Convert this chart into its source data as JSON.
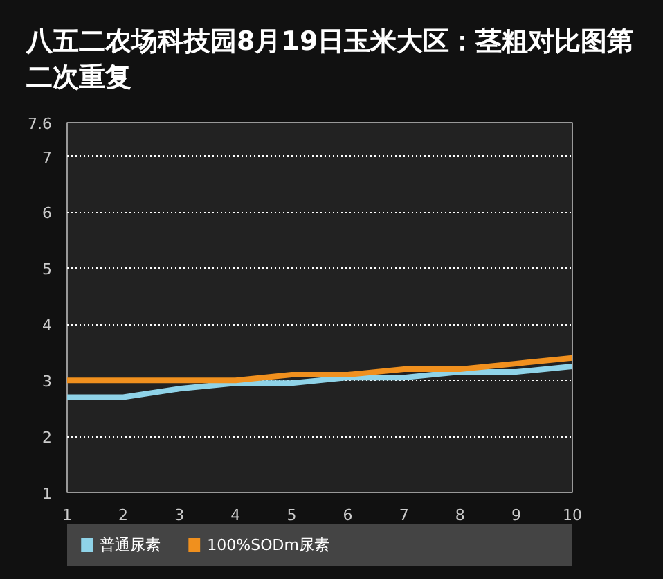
{
  "chart_data": {
    "type": "line",
    "title": "八五二农场科技园8月19日玉米大区：茎粗对比图第二次重复",
    "x": [
      1,
      2,
      3,
      4,
      5,
      6,
      7,
      8,
      9,
      10
    ],
    "series": [
      {
        "name": "普通尿素",
        "color": "#8fd3e8",
        "values": [
          2.7,
          2.7,
          2.85,
          2.95,
          2.95,
          3.05,
          3.05,
          3.15,
          3.15,
          3.25
        ]
      },
      {
        "name": "100%SODm尿素",
        "color": "#f0901e",
        "values": [
          3.0,
          3.0,
          3.0,
          3.0,
          3.1,
          3.1,
          3.2,
          3.2,
          3.3,
          3.4
        ]
      }
    ],
    "xlim": [
      1,
      10
    ],
    "xticks": [
      1,
      2,
      3,
      4,
      5,
      6,
      7,
      8,
      9,
      10
    ],
    "ylim": [
      1,
      7.6
    ],
    "yticks": [
      1,
      2,
      3,
      4,
      5,
      6,
      7,
      7.6
    ],
    "grid": "y",
    "legend": "bottom",
    "marker": "none",
    "line_style": "solid"
  }
}
